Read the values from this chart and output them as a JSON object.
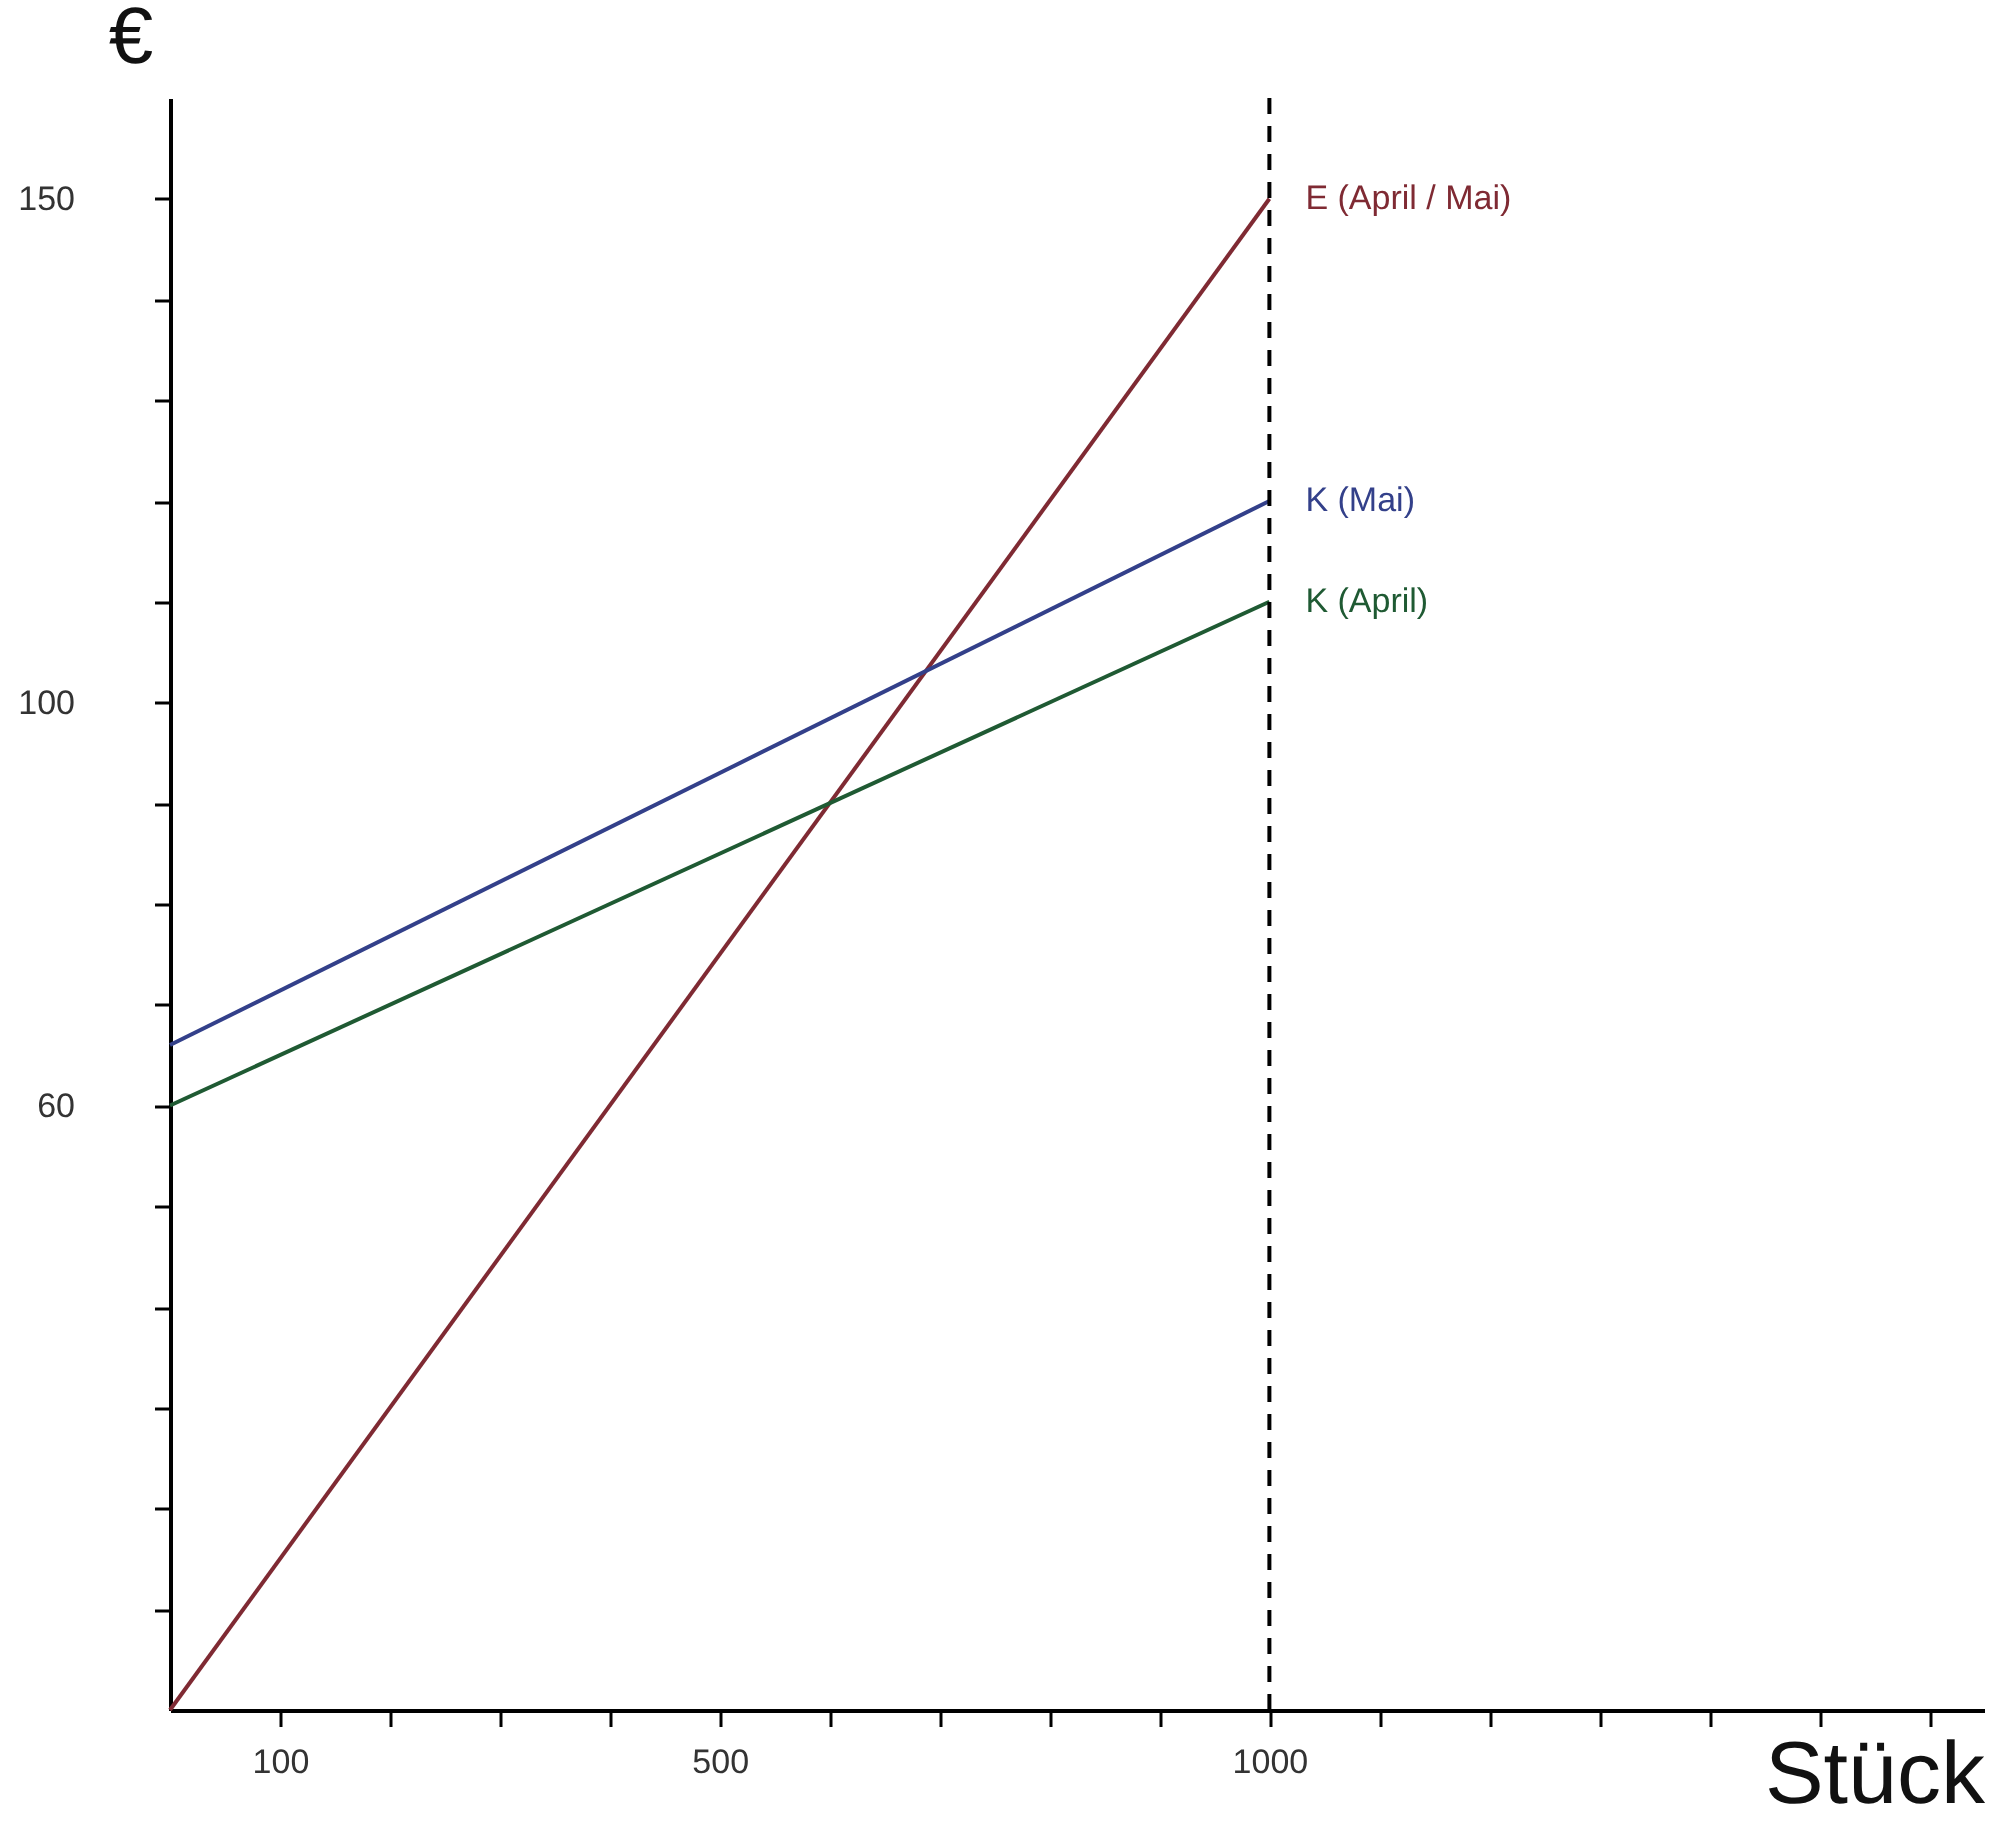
{
  "chart_data": {
    "type": "line",
    "xlabel": "Stück",
    "ylabel": "€",
    "x": [
      0,
      1000
    ],
    "series": [
      {
        "name": "E (April / Mai)",
        "color": "#7f2a33",
        "values": [
          0,
          150
        ]
      },
      {
        "name": "K (Mai)",
        "color": "#33408a",
        "values": [
          66,
          120
        ]
      },
      {
        "name": "K (April)",
        "color": "#1f5a33",
        "values": [
          60,
          110
        ]
      }
    ],
    "xlim": [
      0,
      1650
    ],
    "ylim": [
      0,
      160
    ],
    "xticks": [
      {
        "value": 100,
        "label": "100"
      },
      {
        "value": 200,
        "label": null
      },
      {
        "value": 300,
        "label": null
      },
      {
        "value": 400,
        "label": null
      },
      {
        "value": 500,
        "label": "500"
      },
      {
        "value": 600,
        "label": null
      },
      {
        "value": 700,
        "label": null
      },
      {
        "value": 800,
        "label": null
      },
      {
        "value": 900,
        "label": null
      },
      {
        "value": 1000,
        "label": "1000"
      },
      {
        "value": 1100,
        "label": null
      },
      {
        "value": 1200,
        "label": null
      },
      {
        "value": 1300,
        "label": null
      },
      {
        "value": 1400,
        "label": null
      },
      {
        "value": 1500,
        "label": null
      },
      {
        "value": 1600,
        "label": null
      }
    ],
    "yticks": [
      {
        "value": 10,
        "label": null
      },
      {
        "value": 20,
        "label": null
      },
      {
        "value": 30,
        "label": null
      },
      {
        "value": 40,
        "label": null
      },
      {
        "value": 50,
        "label": null
      },
      {
        "value": 60,
        "label": "60"
      },
      {
        "value": 70,
        "label": null
      },
      {
        "value": 80,
        "label": null
      },
      {
        "value": 90,
        "label": null
      },
      {
        "value": 100,
        "label": "100"
      },
      {
        "value": 110,
        "label": null
      },
      {
        "value": 120,
        "label": null
      },
      {
        "value": 130,
        "label": null
      },
      {
        "value": 140,
        "label": null
      },
      {
        "value": 150,
        "label": "150"
      }
    ],
    "ref_lines": [
      {
        "axis": "x",
        "value": 1000,
        "line_style": "dashed"
      }
    ],
    "grid": false,
    "legend": false,
    "marker": "none",
    "line_style": "solid"
  }
}
